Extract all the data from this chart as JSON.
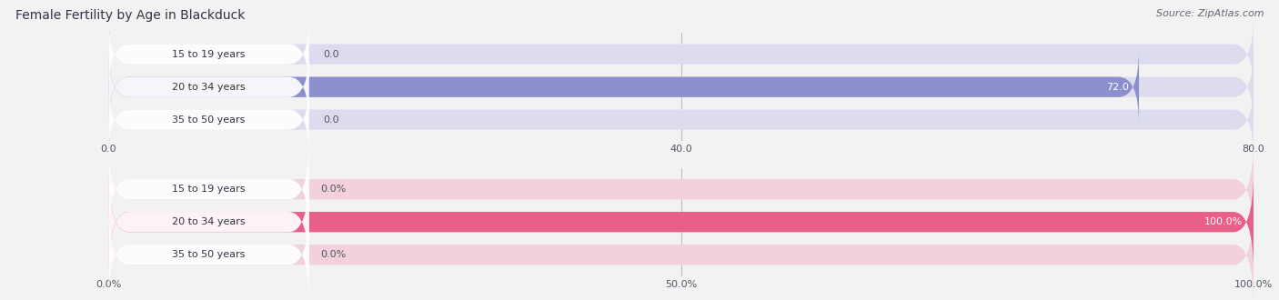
{
  "title": "Female Fertility by Age in Blackduck",
  "source": "Source: ZipAtlas.com",
  "top_chart": {
    "categories": [
      "15 to 19 years",
      "20 to 34 years",
      "35 to 50 years"
    ],
    "values": [
      0.0,
      72.0,
      0.0
    ],
    "xlim": [
      0,
      80.0
    ],
    "xticks": [
      0.0,
      40.0,
      80.0
    ],
    "xtick_labels": [
      "0.0",
      "40.0",
      "80.0"
    ],
    "bar_color": "#8b8fcc",
    "bar_bg_color": "#dcdcee",
    "label_bg_color": "#ffffff",
    "bar_height": 0.62
  },
  "bottom_chart": {
    "categories": [
      "15 to 19 years",
      "20 to 34 years",
      "35 to 50 years"
    ],
    "values": [
      0.0,
      100.0,
      0.0
    ],
    "xlim": [
      0,
      100.0
    ],
    "xticks": [
      0.0,
      50.0,
      100.0
    ],
    "xtick_labels": [
      "0.0%",
      "50.0%",
      "100.0%"
    ],
    "bar_color": "#e8608a",
    "bar_bg_color": "#f2d0dc",
    "label_bg_color": "#ffffff",
    "bar_height": 0.62
  },
  "background_color": "#f2f2f2",
  "title_fontsize": 10,
  "label_fontsize": 8,
  "value_fontsize": 8,
  "source_fontsize": 8
}
